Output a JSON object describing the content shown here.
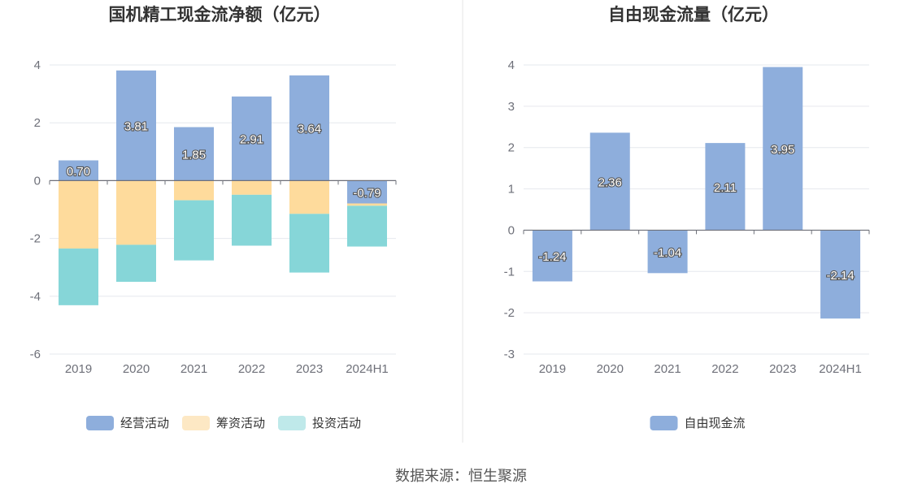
{
  "source_label": "数据来源：恒生聚源",
  "chart_data": [
    {
      "type": "bar",
      "stacked": true,
      "title": "国机精工现金流净额（亿元）",
      "categories": [
        "2019",
        "2020",
        "2021",
        "2022",
        "2023",
        "2024H1"
      ],
      "ylim": [
        -6,
        4
      ],
      "yticks": [
        4,
        2,
        0,
        -2,
        -4,
        -6
      ],
      "grid": true,
      "legend_position": "bottom",
      "series": [
        {
          "name": "经营活动",
          "color": "#8eaedc",
          "values": [
            0.7,
            3.81,
            1.85,
            2.91,
            3.64,
            -0.79
          ],
          "labels": [
            "0.70",
            "3.81",
            "1.85",
            "2.91",
            "3.64",
            "-0.79"
          ]
        },
        {
          "name": "筹资活动",
          "color": "#fedb9c",
          "values": [
            -2.35,
            -2.22,
            -0.68,
            -0.49,
            -1.15,
            -0.08
          ]
        },
        {
          "name": "投资活动",
          "color": "#86d6d8",
          "values": [
            -1.96,
            -1.28,
            -2.08,
            -1.76,
            -2.03,
            -1.41
          ]
        }
      ]
    },
    {
      "type": "bar",
      "title": "自由现金流量（亿元）",
      "categories": [
        "2019",
        "2020",
        "2021",
        "2022",
        "2023",
        "2024H1"
      ],
      "ylim": [
        -3,
        4
      ],
      "yticks": [
        4,
        3,
        2,
        1,
        0,
        -1,
        -2,
        -3
      ],
      "grid": true,
      "legend_position": "bottom",
      "series": [
        {
          "name": "自由现金流",
          "color": "#8eaedc",
          "values": [
            -1.24,
            2.36,
            -1.04,
            2.11,
            3.95,
            -2.14
          ],
          "labels": [
            "-1.24",
            "2.36",
            "-1.04",
            "2.11",
            "3.95",
            "-2.14"
          ]
        }
      ]
    }
  ]
}
